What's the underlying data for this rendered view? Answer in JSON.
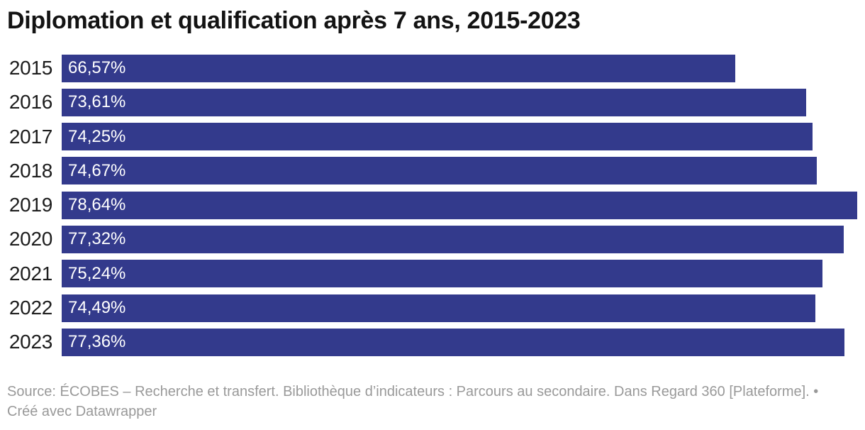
{
  "header": {
    "title": "Diplomation et qualification après 7 ans, 2015-2023"
  },
  "chart_data": {
    "type": "bar",
    "orientation": "horizontal",
    "title": "Diplomation et qualification après 7 ans, 2015-2023",
    "categories": [
      "2015",
      "2016",
      "2017",
      "2018",
      "2019",
      "2020",
      "2021",
      "2022",
      "2023"
    ],
    "values": [
      66.57,
      73.61,
      74.25,
      74.67,
      78.64,
      77.32,
      75.24,
      74.49,
      77.36
    ],
    "value_labels": [
      "66,57%",
      "73,61%",
      "74,25%",
      "74,67%",
      "78,64%",
      "77,32%",
      "75,24%",
      "74,49%",
      "77,36%"
    ],
    "xlabel": "",
    "ylabel": "",
    "xlim": [
      0,
      78.64
    ],
    "grid": false,
    "legend": false,
    "bar_color": "#333a8c",
    "value_label_color": "#ffffff",
    "category_label_color": "#1d1d1d"
  },
  "footer": {
    "source_label": "Source:",
    "source_text": "ÉCOBES – Recherche et transfert. Bibliothèque d’indicateurs : Parcours au secondaire. Dans Regard 360 [Plateforme].",
    "separator": "•",
    "credit": "Créé avec Datawrapper"
  }
}
